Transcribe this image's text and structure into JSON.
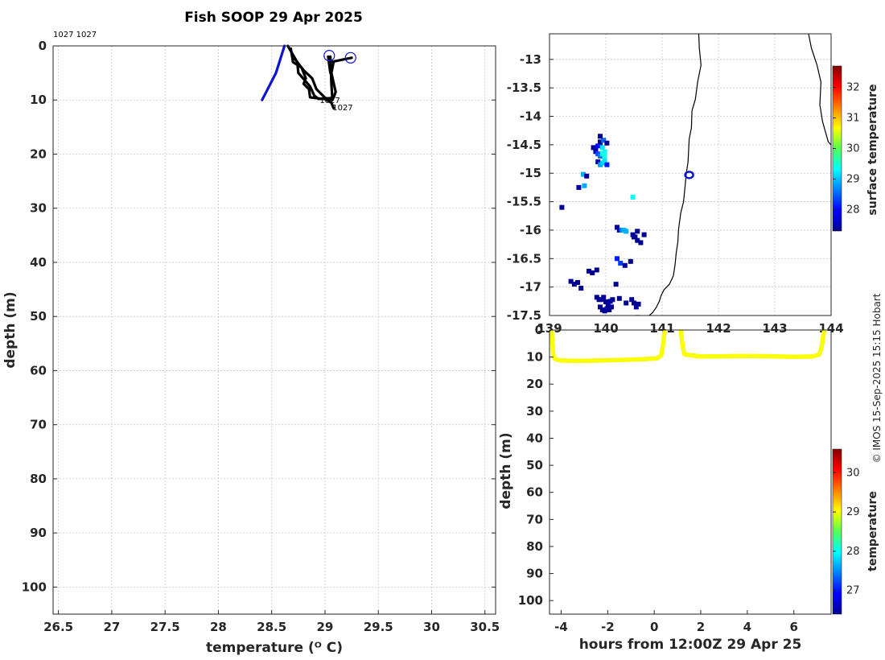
{
  "title": "Fish SOOP 29 Apr 2025",
  "credit": "© IMOS 15-Sep-2025 15:15 Hobart",
  "colors": {
    "profile_black": "#000000",
    "profile_blue": "#0a14d2",
    "timeseries_yellow": "#d8f020",
    "map_marker": "#0a14d2"
  },
  "chart_data": [
    {
      "type": "line",
      "panel": "temperature-profile",
      "xlabel": "temperature (ᴼ C)",
      "ylabel": "depth (m)",
      "xlim": [
        26.45,
        30.6
      ],
      "ylim": [
        0,
        105
      ],
      "y_reversed": true,
      "grid": true,
      "xticks": [
        26.5,
        27,
        27.5,
        28,
        28.5,
        29,
        29.5,
        30,
        30.5
      ],
      "xtick_labels": [
        "26.5",
        "27",
        "27.5",
        "28",
        "28.5",
        "29",
        "29.5",
        "30",
        "30.5"
      ],
      "yticks": [
        0,
        10,
        20,
        30,
        40,
        50,
        60,
        70,
        80,
        90,
        100
      ],
      "ytick_labels": [
        "0",
        "10",
        "20",
        "30",
        "40",
        "50",
        "60",
        "70",
        "80",
        "90",
        "100"
      ],
      "top_label": "1027 1027",
      "annotations": [
        {
          "text": "1027",
          "x": 28.95,
          "y": 10.0
        },
        {
          "text": "1027",
          "x": 29.07,
          "y": 11.3
        }
      ],
      "series": [
        {
          "color": "#0a14d2",
          "x": [
            28.41,
            28.54,
            28.62
          ],
          "y": [
            10,
            5,
            0
          ]
        },
        {
          "color": "#000000",
          "x": [
            28.68,
            28.7,
            28.78,
            28.82,
            28.8,
            28.85,
            28.86,
            28.98,
            29.08,
            29.1,
            29.06,
            29.08
          ],
          "y": [
            0.5,
            3,
            4,
            6,
            7,
            8,
            9.5,
            9.8,
            9.6,
            8.5,
            5,
            3
          ]
        },
        {
          "color": "#000000",
          "x": [
            28.7,
            28.8,
            28.88,
            28.92,
            29.0,
            29.07,
            29.06,
            29.05
          ],
          "y": [
            2,
            4.5,
            6,
            8,
            9.6,
            10,
            7,
            2
          ]
        },
        {
          "color": "#000000",
          "x": [
            28.65,
            28.74,
            28.75,
            28.86,
            28.9,
            28.94,
            28.99,
            29.06,
            29.08
          ],
          "y": [
            0,
            3,
            5,
            7.5,
            9.2,
            9.8,
            9.7,
            10.5,
            11.5
          ]
        },
        {
          "color": "#000000",
          "x": [
            29.03,
            29.05
          ],
          "y": [
            2,
            5
          ]
        },
        {
          "color": "#000000",
          "x": [
            29.05,
            29.25
          ],
          "y": [
            3,
            2.2
          ]
        }
      ],
      "markers": [
        {
          "x": 29.04,
          "y": 1.8
        },
        {
          "x": 29.24,
          "y": 2.2
        }
      ]
    },
    {
      "type": "heatmap",
      "panel": "surface-temperature-map",
      "xlim": [
        139.0,
        144.0
      ],
      "ylim": [
        -17.5,
        -12.55
      ],
      "grid": true,
      "xticks": [
        139,
        140,
        141,
        142,
        143,
        144
      ],
      "xtick_labels": [
        "139",
        "140",
        "141",
        "142",
        "143",
        "144"
      ],
      "yticks": [
        -13,
        -13.5,
        -14,
        -14.5,
        -15,
        -15.5,
        -16,
        -16.5,
        -17,
        -17.5
      ],
      "ytick_labels": [
        "-13",
        "-13.5",
        "-14",
        "-14.5",
        "-15",
        "-15.5",
        "-16",
        "-16.5",
        "-17",
        "-17.5"
      ],
      "colorbar": {
        "label": "surface temperature",
        "range": [
          27.3,
          32.7
        ],
        "ticks": [
          28,
          29,
          30,
          31,
          32
        ],
        "tick_labels": [
          "28",
          "29",
          "30",
          "31",
          "32"
        ]
      },
      "position_marker": {
        "lon": 141.48,
        "lat": -15.03
      },
      "coastline_lon": [
        141.65,
        141.66,
        141.69,
        141.63,
        141.59,
        141.53,
        141.52,
        141.48,
        141.47,
        141.46,
        141.43,
        141.41,
        141.38,
        141.33,
        141.29,
        141.28,
        141.25,
        141.23,
        141.2,
        141.13,
        141.03,
        140.98,
        140.95,
        140.9,
        140.83,
        140.77,
        140.7,
        140.6,
        140.53
      ],
      "coastline_lat": [
        -12.55,
        -12.8,
        -13.1,
        -13.4,
        -13.7,
        -13.9,
        -14.2,
        -14.4,
        -14.6,
        -14.8,
        -15.0,
        -15.2,
        -15.5,
        -15.7,
        -16.0,
        -16.2,
        -16.4,
        -16.6,
        -16.8,
        -16.95,
        -17.05,
        -17.15,
        -17.25,
        -17.35,
        -17.45,
        -17.5,
        -17.55,
        -17.5,
        -17.5
      ],
      "peninsula_lon": [
        143.6,
        143.65,
        143.75,
        143.82,
        143.8,
        143.85,
        143.95,
        144.0
      ],
      "peninsula_lat": [
        -12.55,
        -12.8,
        -13.1,
        -13.4,
        -13.8,
        -14.1,
        -14.45,
        -14.5
      ],
      "cells": {
        "lon": [
          139.78,
          139.82,
          139.86,
          139.9,
          139.94,
          139.98,
          139.82,
          139.86,
          139.9,
          139.94,
          139.98,
          139.86,
          139.9,
          139.94,
          139.98,
          140.02,
          139.9,
          139.96,
          140.02,
          139.9,
          139.6,
          139.66,
          139.62,
          139.52,
          140.48,
          139.22,
          140.2,
          140.24,
          140.28,
          140.32,
          140.36,
          140.48,
          140.52,
          140.56,
          140.2,
          140.26,
          140.34,
          140.44,
          139.84,
          139.88,
          139.92,
          139.96,
          140.0,
          140.04,
          140.08,
          140.12,
          139.9,
          139.94,
          139.98,
          140.02,
          140.06,
          140.1,
          140.24,
          140.36,
          140.46,
          140.5,
          140.54,
          140.58,
          140.5,
          140.56,
          140.62,
          140.68,
          139.38,
          139.44,
          139.5,
          139.56,
          139.7,
          139.76,
          139.84,
          140.18
        ],
        "lat": [
          -14.55,
          -14.55,
          -14.52,
          -14.48,
          -14.55,
          -14.62,
          -14.62,
          -14.66,
          -14.7,
          -14.66,
          -14.7,
          -14.8,
          -14.85,
          -14.82,
          -14.78,
          -14.85,
          -14.45,
          -14.42,
          -14.47,
          -14.35,
          -15.02,
          -15.05,
          -15.22,
          -15.25,
          -15.42,
          -15.6,
          -15.95,
          -16.0,
          -16.0,
          -16.0,
          -16.02,
          -16.08,
          -16.12,
          -16.02,
          -16.5,
          -16.58,
          -16.62,
          -16.55,
          -17.18,
          -17.22,
          -17.22,
          -17.18,
          -17.26,
          -17.3,
          -17.25,
          -17.22,
          -17.35,
          -17.4,
          -17.42,
          -17.38,
          -17.4,
          -17.35,
          -17.2,
          -17.28,
          -17.22,
          -17.28,
          -17.35,
          -17.3,
          -16.12,
          -16.18,
          -16.22,
          -16.08,
          -16.9,
          -16.95,
          -16.92,
          -17.02,
          -16.72,
          -16.75,
          -16.7,
          -16.95
        ],
        "value": [
          27.4,
          27.5,
          28.0,
          28.2,
          29.2,
          29.4,
          27.6,
          28.4,
          28.6,
          29.3,
          29.5,
          27.5,
          28.8,
          29.0,
          29.2,
          28.1,
          27.4,
          28.5,
          27.4,
          27.4,
          28.9,
          27.4,
          28.9,
          27.5,
          29.4,
          27.4,
          27.4,
          27.5,
          28.6,
          28.9,
          28.9,
          27.4,
          27.4,
          27.4,
          28.1,
          28.3,
          27.5,
          27.4,
          27.4,
          27.4,
          27.4,
          27.5,
          27.4,
          27.4,
          27.5,
          27.4,
          27.4,
          27.4,
          27.4,
          27.5,
          27.4,
          27.4,
          27.4,
          27.4,
          27.4,
          27.4,
          27.5,
          27.4,
          27.4,
          27.4,
          27.4,
          27.4,
          27.4,
          27.4,
          27.4,
          27.4,
          27.4,
          27.4,
          27.4,
          27.4
        ]
      }
    },
    {
      "type": "scatter",
      "panel": "depth-timeseries",
      "xlabel": "hours from 12:00Z 29 Apr 25",
      "ylabel": "depth (m)",
      "xlim": [
        -4.5,
        7.6
      ],
      "ylim": [
        0,
        105
      ],
      "y_reversed": true,
      "grid": false,
      "xticks": [
        -4,
        -2,
        0,
        2,
        4,
        6
      ],
      "xtick_labels": [
        "-4",
        "-2",
        "0",
        "2",
        "4",
        "6"
      ],
      "yticks": [
        0,
        10,
        20,
        30,
        40,
        50,
        60,
        70,
        80,
        90,
        100
      ],
      "ytick_labels": [
        "0",
        "10",
        "20",
        "30",
        "40",
        "50",
        "60",
        "70",
        "80",
        "90",
        "100"
      ],
      "colorbar": {
        "label": "temperature",
        "range": [
          26.4,
          30.6
        ],
        "ticks": [
          27,
          28,
          29,
          30
        ],
        "tick_labels": [
          "27",
          "28",
          "29",
          "30"
        ]
      },
      "segments": [
        {
          "x": [
            -4.4,
            -4.38,
            -4.35,
            -4.3,
            -4.1,
            -3.5,
            -2.5,
            -1.5,
            -0.5,
            0.1,
            0.3,
            0.35,
            0.4,
            0.42,
            0.45
          ],
          "y": [
            1,
            4,
            8,
            10.5,
            11.2,
            11.4,
            11.3,
            11.1,
            10.8,
            10.5,
            9.5,
            7,
            4,
            2,
            0.5
          ]
        },
        {
          "x": [
            1.15,
            1.18,
            1.22,
            1.3,
            2,
            3,
            4,
            5,
            6,
            6.8,
            7.1,
            7.2,
            7.25,
            7.3
          ],
          "y": [
            0.5,
            3,
            6,
            9,
            9.8,
            9.7,
            9.6,
            9.7,
            9.9,
            9.8,
            9,
            6,
            3,
            0.5
          ]
        }
      ],
      "point_value": 29.0
    }
  ]
}
